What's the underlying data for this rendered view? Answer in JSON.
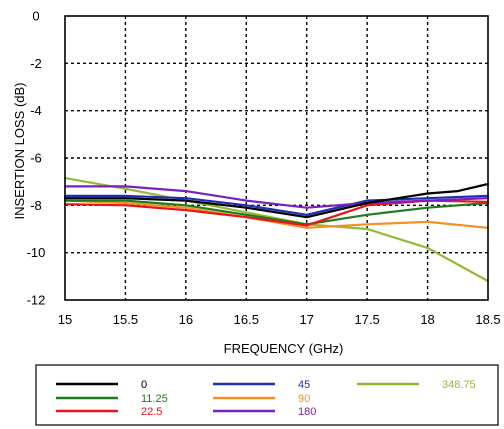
{
  "chart_data": {
    "type": "line",
    "xlabel": "FREQUENCY (GHz)",
    "ylabel": "INSERTION LOSS  (dB)",
    "xlim": [
      15,
      18.5
    ],
    "ylim": [
      -12,
      0
    ],
    "xticks": [
      "15",
      "15.5",
      "16",
      "16.5",
      "17",
      "17.5",
      "18",
      "18.5"
    ],
    "yticks": [
      "0",
      "-2",
      "-4",
      "-6",
      "-8",
      "-10",
      "-12"
    ],
    "grid": true,
    "legend_position": "bottom",
    "series": [
      {
        "name": "0",
        "color": "#000000",
        "x": [
          15,
          15.5,
          16,
          16.5,
          17,
          17.5,
          18,
          18.25,
          18.5
        ],
        "y": [
          -7.7,
          -7.7,
          -7.8,
          -8.1,
          -8.5,
          -7.9,
          -7.5,
          -7.4,
          -7.1
        ]
      },
      {
        "name": "11.25",
        "color": "#1e7b1e",
        "x": [
          15,
          15.5,
          16,
          16.5,
          17,
          17.5,
          18,
          18.5
        ],
        "y": [
          -7.8,
          -7.8,
          -8.0,
          -8.4,
          -8.8,
          -8.4,
          -8.1,
          -7.9
        ]
      },
      {
        "name": "22.5",
        "color": "#e8141e",
        "x": [
          15,
          15.5,
          16,
          16.5,
          17,
          17.5,
          18,
          18.5
        ],
        "y": [
          -7.95,
          -8.0,
          -8.2,
          -8.5,
          -8.85,
          -8.0,
          -7.8,
          -7.85
        ]
      },
      {
        "name": "45",
        "color": "#1f2fb3",
        "x": [
          15,
          15.5,
          16,
          16.5,
          17,
          17.5,
          18,
          18.5
        ],
        "y": [
          -7.6,
          -7.6,
          -7.7,
          -8.0,
          -8.4,
          -7.8,
          -7.7,
          -7.6
        ]
      },
      {
        "name": "90",
        "color": "#f39222",
        "x": [
          15,
          15.5,
          16,
          16.5,
          17,
          17.5,
          18,
          18.5
        ],
        "y": [
          -7.8,
          -7.9,
          -8.1,
          -8.5,
          -8.95,
          -8.8,
          -8.7,
          -8.95
        ]
      },
      {
        "name": "180",
        "color": "#7c1fbf",
        "x": [
          15,
          15.5,
          16,
          16.5,
          17,
          17.5,
          18,
          18.5
        ],
        "y": [
          -7.2,
          -7.2,
          -7.4,
          -7.8,
          -8.1,
          -7.9,
          -7.8,
          -7.7
        ]
      },
      {
        "name": "348.75",
        "color": "#94b934",
        "x": [
          15,
          15.5,
          16,
          16.5,
          17,
          17.5,
          18,
          18.25,
          18.5
        ],
        "y": [
          -6.85,
          -7.3,
          -7.8,
          -8.3,
          -8.8,
          -9.0,
          -9.8,
          -10.5,
          -11.2
        ]
      }
    ]
  }
}
